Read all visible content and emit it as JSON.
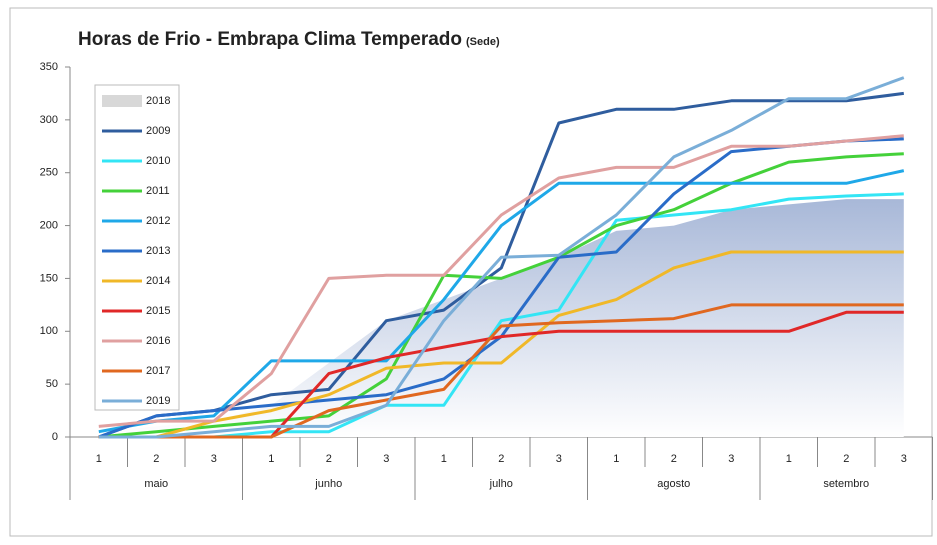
{
  "chart_data": {
    "type": "line",
    "title": "Horas de Frio - Embrapa Clima Temperado",
    "subtitle": "(Sede)",
    "categories": [
      "1",
      "2",
      "3",
      "1",
      "2",
      "3",
      "1",
      "2",
      "3",
      "1",
      "2",
      "3",
      "1",
      "2",
      "3"
    ],
    "groups": [
      "maio",
      "junho",
      "julho",
      "agosto",
      "setembro"
    ],
    "ylim": [
      0,
      350
    ],
    "yticks": [
      0,
      50,
      100,
      150,
      200,
      250,
      300,
      350
    ],
    "grid": false,
    "series": [
      {
        "name": "2018",
        "color": "#b8c8e4",
        "area": true,
        "values": [
          5,
          10,
          15,
          30,
          70,
          110,
          130,
          150,
          170,
          195,
          200,
          215,
          220,
          225,
          225
        ]
      },
      {
        "name": "2009",
        "color": "#2f5d9e",
        "values": [
          0,
          20,
          25,
          40,
          45,
          110,
          120,
          160,
          297,
          310,
          310,
          318,
          318,
          318,
          325
        ]
      },
      {
        "name": "2010",
        "color": "#33e5f5",
        "values": [
          0,
          0,
          0,
          5,
          5,
          30,
          30,
          110,
          120,
          205,
          210,
          215,
          225,
          228,
          230
        ]
      },
      {
        "name": "2011",
        "color": "#44d13a",
        "values": [
          0,
          5,
          10,
          15,
          20,
          55,
          153,
          150,
          170,
          200,
          215,
          240,
          260,
          265,
          268
        ]
      },
      {
        "name": "2012",
        "color": "#1fa8e8",
        "values": [
          5,
          15,
          20,
          72,
          72,
          72,
          130,
          200,
          240,
          240,
          240,
          240,
          240,
          240,
          252
        ]
      },
      {
        "name": "2013",
        "color": "#2a6cc8",
        "values": [
          0,
          20,
          25,
          30,
          35,
          40,
          55,
          95,
          170,
          175,
          230,
          270,
          275,
          280,
          282
        ]
      },
      {
        "name": "2014",
        "color": "#f0b828",
        "values": [
          0,
          0,
          15,
          25,
          40,
          65,
          70,
          70,
          115,
          130,
          160,
          175,
          175,
          175,
          175
        ]
      },
      {
        "name": "2015",
        "color": "#e02828",
        "values": [
          0,
          0,
          0,
          0,
          60,
          75,
          85,
          95,
          100,
          100,
          100,
          100,
          100,
          118,
          118
        ]
      },
      {
        "name": "2016",
        "color": "#e0a0a0",
        "values": [
          10,
          15,
          15,
          60,
          150,
          153,
          153,
          210,
          245,
          255,
          255,
          275,
          275,
          280,
          285
        ]
      },
      {
        "name": "2017",
        "color": "#e06820",
        "values": [
          0,
          0,
          0,
          0,
          25,
          35,
          45,
          105,
          108,
          110,
          112,
          125,
          125,
          125,
          125
        ]
      },
      {
        "name": "2019",
        "color": "#7aaed8",
        "values": [
          0,
          0,
          5,
          10,
          10,
          30,
          110,
          170,
          172,
          210,
          265,
          290,
          320,
          320,
          340
        ]
      }
    ]
  }
}
